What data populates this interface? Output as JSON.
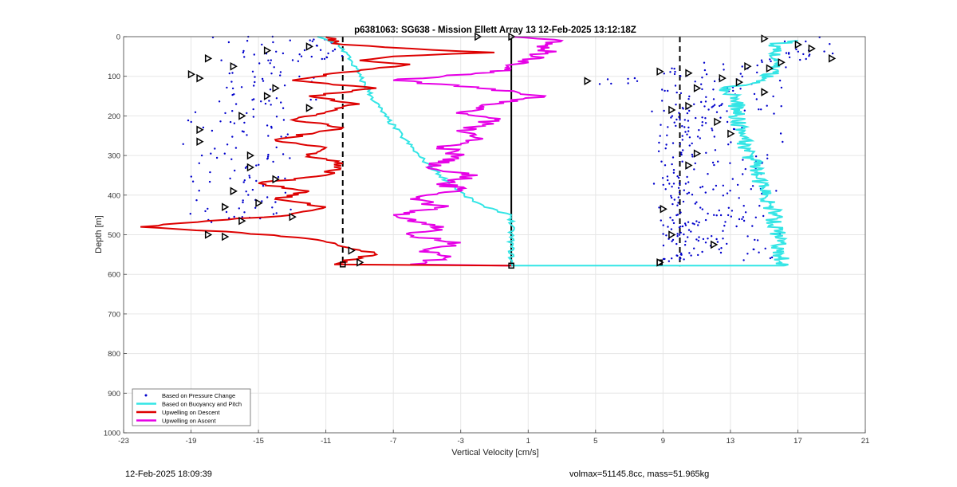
{
  "chart_data": {
    "type": "line",
    "title": "p6381063: SG638 - Mission Ellett Array 13 12-Feb-2025 13:12:18Z",
    "xlabel": "Vertical Velocity [cm/s]",
    "ylabel": "Depth [m]",
    "xlim": [
      -23,
      21
    ],
    "ylim": [
      1000,
      0
    ],
    "y_reversed": true,
    "xticks": [
      -23,
      -19,
      -15,
      -11,
      -7,
      -3,
      1,
      5,
      9,
      13,
      17,
      21
    ],
    "yticks": [
      0,
      100,
      200,
      300,
      400,
      500,
      600,
      700,
      800,
      900,
      1000
    ],
    "grid": true,
    "legend_position": "bottom-left",
    "reference_lines": [
      {
        "x": -10,
        "style": "dashed",
        "color": "#000000"
      },
      {
        "x": 0,
        "style": "solid",
        "color": "#000000"
      },
      {
        "x": 10,
        "style": "dashed",
        "color": "#000000"
      }
    ],
    "series": [
      {
        "name": "Based on Pressure Change",
        "style": "dots",
        "color": "#0000cc",
        "clusters": [
          {
            "depth": [
              0,
              180
            ],
            "center": -15,
            "spread": 4
          },
          {
            "depth": [
              180,
              470
            ],
            "center": -16,
            "spread": 3.5
          },
          {
            "depth": [
              0,
              60
            ],
            "center": -11,
            "spread": 2
          },
          {
            "depth": [
              0,
              60
            ],
            "center": 17,
            "spread": 2.5
          },
          {
            "depth": [
              60,
              170
            ],
            "center": 13.5,
            "spread": 3
          },
          {
            "depth": [
              170,
              570
            ],
            "center": 13,
            "spread": 3.5
          },
          {
            "depth": [
              80,
              570
            ],
            "center": 10,
            "spread": 1.8
          },
          {
            "depth": [
              100,
              120
            ],
            "center": 6,
            "spread": 3
          }
        ]
      },
      {
        "name": "Based on Buoyancy and Pitch",
        "style": "line",
        "color": "#33e5e5",
        "descent": [
          [
            0,
            -11.5
          ],
          [
            20,
            -10.2
          ],
          [
            60,
            -9.5
          ],
          [
            100,
            -9
          ],
          [
            150,
            -8.3
          ],
          [
            200,
            -7.5
          ],
          [
            250,
            -6.5
          ],
          [
            300,
            -5.5
          ],
          [
            350,
            -4.2
          ],
          [
            400,
            -2.8
          ],
          [
            430,
            -1.6
          ],
          [
            450,
            0
          ],
          [
            578,
            0
          ],
          [
            578,
            16.2
          ]
        ],
        "ascent": [
          [
            578,
            16.2
          ],
          [
            570,
            16
          ],
          [
            500,
            15.8
          ],
          [
            450,
            15.6
          ],
          [
            400,
            15.2
          ],
          [
            350,
            14.6
          ],
          [
            300,
            14.2
          ],
          [
            250,
            13.6
          ],
          [
            200,
            13.4
          ],
          [
            150,
            13.4
          ],
          [
            130,
            12.5
          ],
          [
            110,
            15
          ],
          [
            90,
            15.5
          ],
          [
            70,
            15.8
          ],
          [
            40,
            15.5
          ],
          [
            20,
            15.5
          ],
          [
            10,
            17
          ]
        ]
      },
      {
        "name": "Upwelling on Descent",
        "style": "line",
        "color": "#dd0000",
        "points": [
          [
            0,
            -11
          ],
          [
            20,
            -10
          ],
          [
            30,
            -6
          ],
          [
            40,
            -1
          ],
          [
            50,
            -7
          ],
          [
            60,
            -9
          ],
          [
            70,
            -6
          ],
          [
            90,
            -10
          ],
          [
            110,
            -13
          ],
          [
            130,
            -8
          ],
          [
            150,
            -12
          ],
          [
            170,
            -9
          ],
          [
            190,
            -11
          ],
          [
            210,
            -13
          ],
          [
            230,
            -10
          ],
          [
            260,
            -14
          ],
          [
            280,
            -11
          ],
          [
            300,
            -12
          ],
          [
            320,
            -10
          ],
          [
            350,
            -11
          ],
          [
            370,
            -15
          ],
          [
            390,
            -12
          ],
          [
            410,
            -14
          ],
          [
            430,
            -11
          ],
          [
            450,
            -13
          ],
          [
            465,
            -18
          ],
          [
            480,
            -22
          ],
          [
            495,
            -16
          ],
          [
            510,
            -12
          ],
          [
            530,
            -10
          ],
          [
            550,
            -8
          ],
          [
            565,
            -10
          ],
          [
            575,
            -10.5
          ],
          [
            578,
            0
          ]
        ]
      },
      {
        "name": "Upwelling on Ascent",
        "style": "line",
        "color": "#e600e6",
        "points": [
          [
            578,
            0
          ],
          [
            575,
            -6
          ],
          [
            560,
            -4
          ],
          [
            540,
            -5
          ],
          [
            520,
            -3
          ],
          [
            500,
            -6
          ],
          [
            480,
            -4
          ],
          [
            450,
            -7
          ],
          [
            430,
            -4
          ],
          [
            410,
            -6
          ],
          [
            390,
            -3
          ],
          [
            370,
            -4
          ],
          [
            350,
            -2
          ],
          [
            330,
            -5
          ],
          [
            300,
            -3
          ],
          [
            280,
            -4
          ],
          [
            260,
            -2
          ],
          [
            240,
            -3
          ],
          [
            210,
            -1
          ],
          [
            190,
            -3
          ],
          [
            170,
            -1
          ],
          [
            150,
            2
          ],
          [
            130,
            -2
          ],
          [
            110,
            -7
          ],
          [
            90,
            -1
          ],
          [
            80,
            0
          ],
          [
            60,
            1
          ],
          [
            40,
            2
          ],
          [
            20,
            2
          ],
          [
            10,
            3
          ],
          [
            0,
            0
          ]
        ]
      }
    ],
    "markers": [
      {
        "x": -18,
        "y": 55
      },
      {
        "x": -16.5,
        "y": 75
      },
      {
        "x": -14.5,
        "y": 35
      },
      {
        "x": -12,
        "y": 25
      },
      {
        "x": -19,
        "y": 95
      },
      {
        "x": -18.5,
        "y": 105
      },
      {
        "x": -14,
        "y": 130
      },
      {
        "x": -14.5,
        "y": 150
      },
      {
        "x": -12,
        "y": 180
      },
      {
        "x": -16,
        "y": 200
      },
      {
        "x": -18.5,
        "y": 235
      },
      {
        "x": -18.5,
        "y": 265
      },
      {
        "x": -15.5,
        "y": 300
      },
      {
        "x": -15.5,
        "y": 330
      },
      {
        "x": -14,
        "y": 360
      },
      {
        "x": -16.5,
        "y": 390
      },
      {
        "x": -15,
        "y": 420
      },
      {
        "x": -17,
        "y": 430
      },
      {
        "x": -16,
        "y": 465
      },
      {
        "x": -13,
        "y": 455
      },
      {
        "x": -18,
        "y": 500
      },
      {
        "x": -17,
        "y": 505
      },
      {
        "x": -9.5,
        "y": 540
      },
      {
        "x": -9,
        "y": 570
      },
      {
        "x": -2,
        "y": 0
      },
      {
        "x": 0,
        "y": 0
      },
      {
        "x": 4.5,
        "y": 112
      },
      {
        "x": 8.8,
        "y": 88
      },
      {
        "x": 10.5,
        "y": 92
      },
      {
        "x": 11,
        "y": 130
      },
      {
        "x": 9.5,
        "y": 185
      },
      {
        "x": 10.5,
        "y": 175
      },
      {
        "x": 12.2,
        "y": 215
      },
      {
        "x": 13,
        "y": 245
      },
      {
        "x": 11,
        "y": 295
      },
      {
        "x": 10.5,
        "y": 325
      },
      {
        "x": 9,
        "y": 435
      },
      {
        "x": 9.5,
        "y": 500
      },
      {
        "x": 12,
        "y": 525
      },
      {
        "x": 8.8,
        "y": 570
      },
      {
        "x": 15,
        "y": 5
      },
      {
        "x": 17,
        "y": 20
      },
      {
        "x": 17.8,
        "y": 30
      },
      {
        "x": 19,
        "y": 55
      },
      {
        "x": 16,
        "y": 65
      },
      {
        "x": 15.3,
        "y": 80
      },
      {
        "x": 14,
        "y": 75
      },
      {
        "x": 12.5,
        "y": 105
      },
      {
        "x": 13.5,
        "y": 115
      },
      {
        "x": 15,
        "y": 140
      }
    ]
  },
  "footer": {
    "timestamp": "12-Feb-2025 18:09:39",
    "params": "volmax=51145.8cc, mass=51.965kg"
  }
}
